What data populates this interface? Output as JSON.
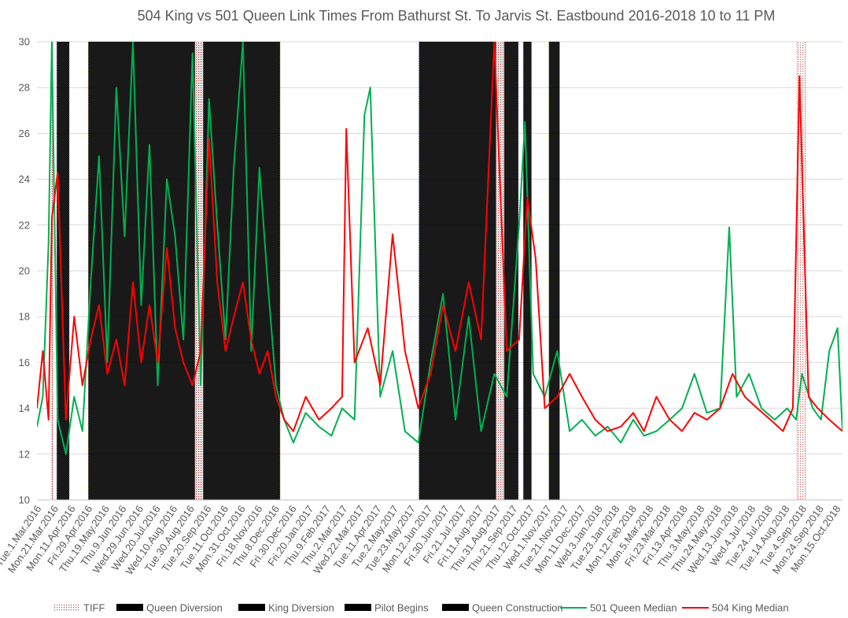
{
  "chart_data": {
    "type": "line",
    "title": "504 King vs 501 Queen Link Times From Bathurst St. To Jarvis St. Eastbound 2016-2018 10 to 11 PM",
    "xlabel": "",
    "ylabel": "",
    "x_range": [
      "2016-03-01",
      "2018-10-31"
    ],
    "ylim": [
      10,
      30
    ],
    "y_ticks": [
      10,
      12,
      14,
      16,
      18,
      20,
      22,
      24,
      26,
      28,
      30
    ],
    "grid": true,
    "legend_position": "bottom",
    "x_tick_labels": [
      "Tue.1.Mar.2016",
      "Mon.21.Mar.2016",
      "Mon.11.Apr.2016",
      "Fri.29.Apr.2016",
      "Thu.19.May.2016",
      "Thu.9.Jun.2016",
      "Wed.29.Jun.2016",
      "Wed.20.Jul.2016",
      "Wed.10.Aug.2016",
      "Tue.30.Aug.2016",
      "Tue.20.Sep.2016",
      "Tue.11.Oct.2016",
      "Mon.31.Oct.2016",
      "Fri.18.Nov.2016",
      "Thu.8.Dec.2016",
      "Fri.30.Dec.2016",
      "Fri.20.Jan.2017",
      "Thu.9.Feb.2017",
      "Thu.2.Mar.2017",
      "Wed.22.Mar.2017",
      "Tue.11.Apr.2017",
      "Tue.2.May.2017",
      "Tue.23.May.2017",
      "Mon.12.Jun.2017",
      "Fri.30.Jun.2017",
      "Fri.21.Jul.2017",
      "Fri.11.Aug.2017",
      "Thu.31.Aug.2017",
      "Thu.21.Sep.2017",
      "Thu.12.Oct.2017",
      "Wed.1.Nov.2017",
      "Tue.21.Nov.2017",
      "Mon.11.Dec.2017",
      "Wed.3.Jan.2018",
      "Tue.23.Jan.2018",
      "Mon.12.Feb.2018",
      "Mon.5.Mar.2018",
      "Fri.23.Mar.2018",
      "Fri.13.Apr.2018",
      "Thu.3.May.2018",
      "Thu.24.May.2018",
      "Wed.13.Jun.2018",
      "Wed.4.Jul.2018",
      "Tue.24.Jul.2018",
      "Tue.14.Aug.2018",
      "Tue.4.Sep.2018",
      "Mon.24.Sep.2018",
      "Mon.15.Oct.2018"
    ],
    "bands": [
      {
        "name": "TIFF",
        "color": "#C0504D",
        "start": "2016-03-19",
        "end": "2016-03-20"
      },
      {
        "name": "King Diversion",
        "color": "#7030A0",
        "start": "2016-03-25",
        "end": "2016-04-09"
      },
      {
        "name": "Queen Diversion",
        "color": "#C9A66B",
        "start": "2016-05-02",
        "end": "2016-12-20"
      },
      {
        "name": "TIFF",
        "color": "#C0504D",
        "start": "2016-09-08",
        "end": "2016-09-18"
      },
      {
        "name": "Queen Construction",
        "color": "#1F3F9E",
        "start": "2017-06-06",
        "end": "2017-10-04"
      },
      {
        "name": "TIFF",
        "color": "#C0504D",
        "start": "2017-09-07",
        "end": "2017-09-17"
      },
      {
        "name": "Queen Diversion",
        "color": "#C9A66B",
        "start": "2017-10-10",
        "end": "2017-10-20"
      },
      {
        "name": "Pilot Begins",
        "color": "#70AD47",
        "start": "2017-11-10",
        "end": "2017-11-23"
      },
      {
        "name": "TIFF",
        "color": "#C0504D",
        "start": "2018-09-06",
        "end": "2018-09-16"
      }
    ],
    "series": [
      {
        "name": "501 Queen Median",
        "color": "#00B050",
        "x": [
          "2016-03-01",
          "2016-03-08",
          "2016-03-15",
          "2016-03-19",
          "2016-03-26",
          "2016-04-05",
          "2016-04-15",
          "2016-04-25",
          "2016-05-05",
          "2016-05-15",
          "2016-05-25",
          "2016-06-05",
          "2016-06-15",
          "2016-06-25",
          "2016-07-05",
          "2016-07-15",
          "2016-07-25",
          "2016-08-05",
          "2016-08-15",
          "2016-08-25",
          "2016-09-05",
          "2016-09-15",
          "2016-09-25",
          "2016-10-05",
          "2016-10-15",
          "2016-10-25",
          "2016-11-05",
          "2016-11-15",
          "2016-11-25",
          "2016-12-05",
          "2016-12-15",
          "2016-12-25",
          "2017-01-05",
          "2017-01-20",
          "2017-02-05",
          "2017-02-20",
          "2017-03-05",
          "2017-03-20",
          "2017-04-01",
          "2017-04-08",
          "2017-04-20",
          "2017-05-05",
          "2017-05-20",
          "2017-06-05",
          "2017-06-20",
          "2017-07-05",
          "2017-07-20",
          "2017-08-05",
          "2017-08-20",
          "2017-09-05",
          "2017-09-20",
          "2017-10-05",
          "2017-10-12",
          "2017-10-22",
          "2017-11-05",
          "2017-11-20",
          "2017-12-05",
          "2017-12-20",
          "2018-01-05",
          "2018-01-20",
          "2018-02-05",
          "2018-02-20",
          "2018-03-05",
          "2018-03-20",
          "2018-04-05",
          "2018-04-20",
          "2018-05-05",
          "2018-05-20",
          "2018-06-05",
          "2018-06-16",
          "2018-06-25",
          "2018-07-10",
          "2018-07-25",
          "2018-08-10",
          "2018-08-25",
          "2018-09-05",
          "2018-09-12",
          "2018-09-25",
          "2018-10-05",
          "2018-10-15",
          "2018-10-25",
          "2018-10-31"
        ],
        "values": [
          13.2,
          14.5,
          21.2,
          30,
          13.5,
          12.0,
          14.5,
          13.0,
          19.5,
          25.0,
          16.0,
          28.0,
          21.5,
          30,
          18.5,
          25.5,
          15.0,
          24.0,
          21.5,
          17.0,
          29.5,
          15.0,
          27.5,
          22.0,
          17.0,
          24.5,
          30,
          16.5,
          24.5,
          19.5,
          15.0,
          13.5,
          12.5,
          13.8,
          13.2,
          12.8,
          14.0,
          13.5,
          26.8,
          28.0,
          14.5,
          16.5,
          13.0,
          12.5,
          16.0,
          19.0,
          13.5,
          18.0,
          13.0,
          15.5,
          14.5,
          22.0,
          26.5,
          15.5,
          14.5,
          16.5,
          13.0,
          13.5,
          12.8,
          13.2,
          12.5,
          13.5,
          12.8,
          13.0,
          13.5,
          14.0,
          15.5,
          13.8,
          14.0,
          21.9,
          14.5,
          15.5,
          14.0,
          13.5,
          14.0,
          13.5,
          15.5,
          14.0,
          13.5,
          16.5,
          17.5,
          13.0
        ]
      },
      {
        "name": "504 King Median",
        "color": "#FF0000",
        "x": [
          "2016-03-01",
          "2016-03-08",
          "2016-03-15",
          "2016-03-19",
          "2016-03-26",
          "2016-04-05",
          "2016-04-15",
          "2016-04-25",
          "2016-05-05",
          "2016-05-15",
          "2016-05-25",
          "2016-06-05",
          "2016-06-15",
          "2016-06-25",
          "2016-07-05",
          "2016-07-15",
          "2016-07-25",
          "2016-08-05",
          "2016-08-15",
          "2016-08-25",
          "2016-09-05",
          "2016-09-15",
          "2016-09-25",
          "2016-10-05",
          "2016-10-15",
          "2016-10-25",
          "2016-11-05",
          "2016-11-15",
          "2016-11-25",
          "2016-12-05",
          "2016-12-15",
          "2016-12-25",
          "2017-01-05",
          "2017-01-20",
          "2017-02-05",
          "2017-02-20",
          "2017-03-05",
          "2017-03-10",
          "2017-03-20",
          "2017-04-05",
          "2017-04-20",
          "2017-05-05",
          "2017-05-20",
          "2017-06-05",
          "2017-06-20",
          "2017-07-05",
          "2017-07-20",
          "2017-08-05",
          "2017-08-20",
          "2017-09-05",
          "2017-09-20",
          "2017-10-05",
          "2017-10-15",
          "2017-10-25",
          "2017-11-05",
          "2017-11-20",
          "2017-12-05",
          "2017-12-20",
          "2018-01-05",
          "2018-01-20",
          "2018-02-05",
          "2018-02-20",
          "2018-03-05",
          "2018-03-20",
          "2018-04-05",
          "2018-04-20",
          "2018-05-05",
          "2018-05-20",
          "2018-06-05",
          "2018-06-20",
          "2018-07-05",
          "2018-07-20",
          "2018-08-05",
          "2018-08-20",
          "2018-09-01",
          "2018-09-09",
          "2018-09-20",
          "2018-10-01",
          "2018-10-15",
          "2018-10-31"
        ],
        "values": [
          14.0,
          16.5,
          13.5,
          22.3,
          24.3,
          13.5,
          18.0,
          15.0,
          17.0,
          18.5,
          15.5,
          17.0,
          15.0,
          19.5,
          16.0,
          18.5,
          16.0,
          21.0,
          17.5,
          16.0,
          15.0,
          16.5,
          25.8,
          19.5,
          16.5,
          18.0,
          19.5,
          17.0,
          15.5,
          16.5,
          14.5,
          13.5,
          13.0,
          14.5,
          13.5,
          14.0,
          14.5,
          26.2,
          16.0,
          17.5,
          15.0,
          21.6,
          16.5,
          14.0,
          15.5,
          18.5,
          16.5,
          19.5,
          17.0,
          30,
          16.5,
          17.0,
          23.2,
          20.5,
          14.0,
          14.5,
          15.5,
          14.5,
          13.5,
          13.0,
          13.2,
          13.8,
          13.0,
          14.5,
          13.5,
          13.0,
          13.8,
          13.5,
          14.0,
          15.5,
          14.5,
          14.0,
          13.5,
          13.0,
          14.0,
          28.5,
          14.5,
          14.0,
          13.5,
          13.0
        ]
      }
    ],
    "legend": [
      {
        "label": "TIFF",
        "kind": "band",
        "color": "#C0504D"
      },
      {
        "label": "Queen Diversion",
        "kind": "band",
        "color": "#C9A66B"
      },
      {
        "label": "King Diversion",
        "kind": "band",
        "color": "#7030A0"
      },
      {
        "label": "Pilot Begins",
        "kind": "band",
        "color": "#70AD47"
      },
      {
        "label": "Queen Construction",
        "kind": "band",
        "color": "#1F3F9E"
      },
      {
        "label": "501 Queen Median",
        "kind": "line",
        "color": "#00B050"
      },
      {
        "label": "504 King Median",
        "kind": "line",
        "color": "#FF0000"
      }
    ]
  }
}
